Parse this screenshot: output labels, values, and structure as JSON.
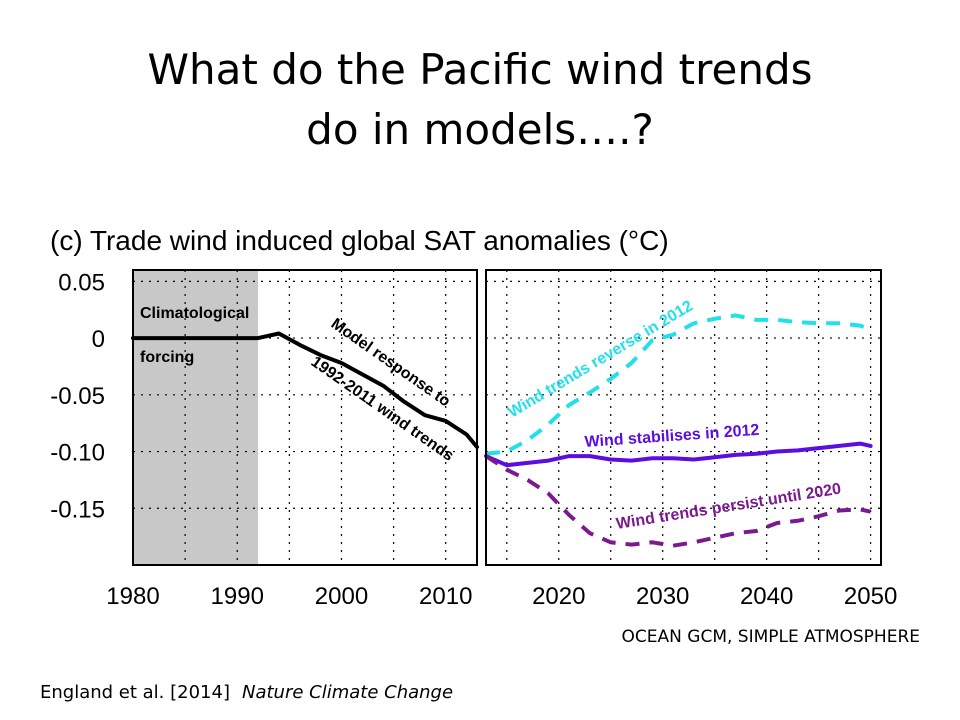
{
  "slide": {
    "title_line1": "What do the Pacific wind trends",
    "title_line2": "do in models….?",
    "model_note": "OCEAN GCM, SIMPLE ATMOSPHERE",
    "citation": "England et al. [2014]",
    "journal": "Nature Climate Change"
  },
  "chart_data": {
    "type": "line",
    "title": "(c) Trade wind induced global SAT anomalies (°C)",
    "xlabel": "",
    "ylabel": "",
    "xticks": [
      1980,
      1990,
      2000,
      2010,
      2020,
      2030,
      2040,
      2050
    ],
    "yticks": [
      0.05,
      0,
      -0.05,
      -0.1,
      -0.15
    ],
    "ytick_labels": [
      "0.05",
      "0",
      "-0.05",
      "-0.10",
      "-0.15"
    ],
    "panels": [
      {
        "name": "left",
        "xlim": [
          1980,
          2013
        ],
        "ylim": [
          -0.2,
          0.06
        ]
      },
      {
        "name": "right",
        "xlim": [
          2013,
          2051
        ],
        "ylim": [
          -0.2,
          0.06
        ]
      }
    ],
    "shaded_region": {
      "x": [
        1980,
        1992
      ],
      "color": "#c8c8c8"
    },
    "grid": true,
    "series": [
      {
        "name": "Model response to 1992-2011 wind trends",
        "panel": "left",
        "color": "#000000",
        "style": "solid",
        "x": [
          1980,
          1990,
          1992,
          1994,
          1996,
          1998,
          2000,
          2002,
          2004,
          2006,
          2008,
          2010,
          2012,
          2013
        ],
        "y": [
          0.0,
          0.0,
          0.0,
          0.004,
          -0.006,
          -0.015,
          -0.022,
          -0.032,
          -0.042,
          -0.056,
          -0.068,
          -0.073,
          -0.085,
          -0.096
        ]
      },
      {
        "name": "Wind trends reverse in 2012",
        "panel": "right",
        "color": "#22e0e8",
        "style": "dashed",
        "x": [
          2013,
          2015,
          2017,
          2019,
          2021,
          2023,
          2025,
          2027,
          2029,
          2031,
          2033,
          2035,
          2037,
          2039,
          2041,
          2043,
          2045,
          2047,
          2049,
          2050
        ],
        "y": [
          -0.102,
          -0.1,
          -0.09,
          -0.076,
          -0.059,
          -0.048,
          -0.036,
          -0.022,
          -0.002,
          0.003,
          0.013,
          0.017,
          0.02,
          0.016,
          0.016,
          0.014,
          0.013,
          0.013,
          0.011,
          0.007
        ]
      },
      {
        "name": "Wind stabilises in 2012",
        "panel": "right",
        "color": "#5a0fe0",
        "style": "solid",
        "x": [
          2013,
          2015,
          2017,
          2019,
          2021,
          2023,
          2025,
          2027,
          2029,
          2031,
          2033,
          2035,
          2037,
          2039,
          2041,
          2043,
          2045,
          2047,
          2049,
          2050
        ],
        "y": [
          -0.104,
          -0.112,
          -0.11,
          -0.108,
          -0.104,
          -0.104,
          -0.107,
          -0.108,
          -0.106,
          -0.106,
          -0.107,
          -0.105,
          -0.103,
          -0.102,
          -0.1,
          -0.099,
          -0.097,
          -0.095,
          -0.093,
          -0.095
        ]
      },
      {
        "name": "Wind trends persist until 2020",
        "panel": "right",
        "color": "#7b1a8f",
        "style": "dashed",
        "x": [
          2013,
          2015,
          2017,
          2019,
          2021,
          2023,
          2025,
          2027,
          2029,
          2031,
          2033,
          2035,
          2037,
          2039,
          2041,
          2043,
          2045,
          2047,
          2049,
          2050
        ],
        "y": [
          -0.104,
          -0.116,
          -0.125,
          -0.137,
          -0.156,
          -0.172,
          -0.18,
          -0.182,
          -0.18,
          -0.183,
          -0.18,
          -0.176,
          -0.172,
          -0.17,
          -0.163,
          -0.161,
          -0.157,
          -0.152,
          -0.151,
          -0.153
        ]
      }
    ],
    "annotations": [
      {
        "text": "Climatological",
        "panel": "left"
      },
      {
        "text": "forcing",
        "panel": "left"
      },
      {
        "text": "Model response to",
        "panel": "left"
      },
      {
        "text": "1992-2011 wind trends",
        "panel": "left"
      },
      {
        "text": "Wind trends reverse in 2012",
        "panel": "right"
      },
      {
        "text": "Wind stabilises in 2012",
        "panel": "right"
      },
      {
        "text": "Wind trends persist until 2020",
        "panel": "right"
      }
    ]
  }
}
